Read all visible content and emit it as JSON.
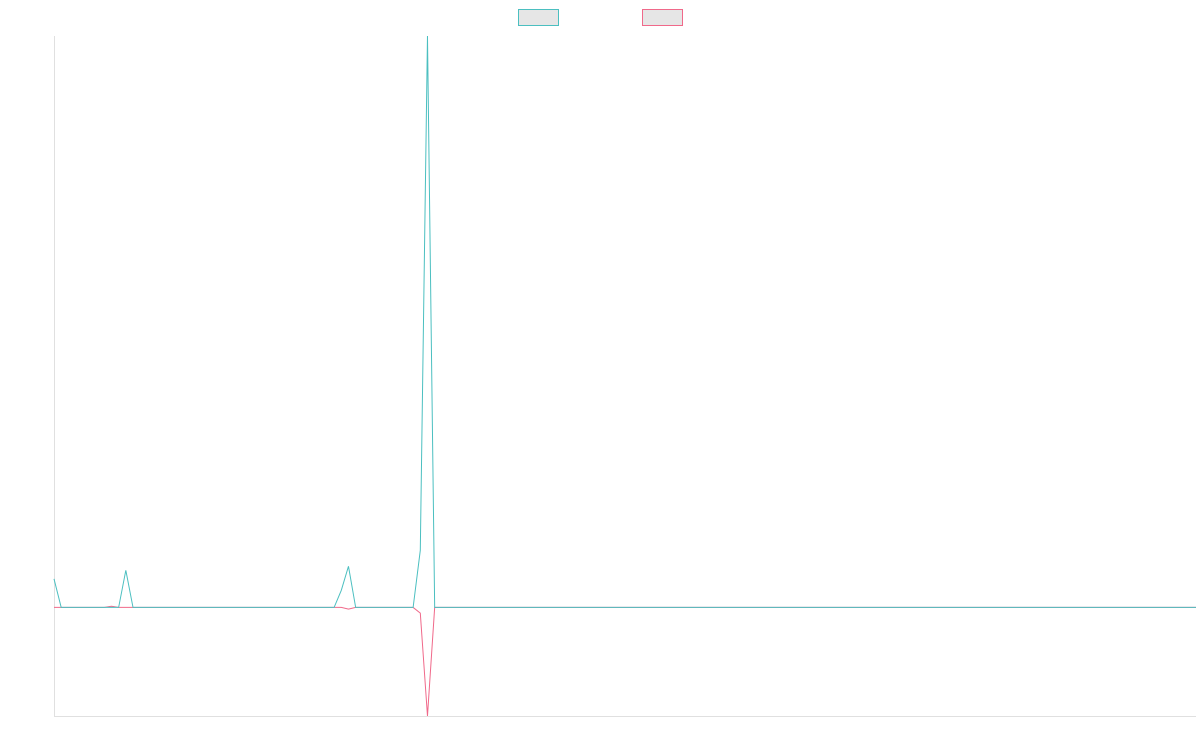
{
  "chart_data": {
    "type": "line",
    "title": "",
    "xlabel": "",
    "ylabel": "",
    "grid": false,
    "legend_position": "top-center",
    "ylim": [
      -0.19,
      1.0
    ],
    "x": [
      0,
      1,
      2,
      3,
      4,
      5,
      6,
      7,
      8,
      9,
      10,
      11,
      12,
      13,
      14,
      15,
      16,
      17,
      18,
      19,
      20,
      21,
      22,
      23,
      24,
      25,
      26,
      27,
      28,
      29,
      30,
      31,
      32,
      33,
      34,
      35,
      36,
      37,
      38,
      39,
      40,
      41,
      42,
      43,
      44,
      45,
      46,
      47,
      48,
      49,
      50,
      51,
      52,
      53,
      54,
      55,
      56,
      57,
      58,
      59,
      60,
      61,
      62,
      63,
      64,
      65,
      66,
      67,
      68,
      69,
      70,
      71,
      72,
      73,
      74,
      75,
      76,
      77,
      78,
      79,
      80,
      81,
      82,
      83,
      84,
      85,
      86,
      87,
      88,
      89,
      90,
      91,
      92,
      93,
      94,
      95,
      96,
      97,
      98,
      99,
      100,
      101,
      102,
      103,
      104,
      105,
      106,
      107,
      108,
      109,
      110,
      111,
      112,
      113,
      114,
      115,
      116,
      117,
      118,
      119,
      120,
      121,
      122,
      123,
      124,
      125,
      126,
      127,
      128,
      129,
      130,
      131,
      132,
      133,
      134,
      135,
      136,
      137,
      138,
      139,
      140,
      141,
      142,
      143,
      144,
      145,
      146,
      147,
      148,
      149,
      150,
      151,
      152,
      153,
      154,
      155,
      156,
      157,
      158,
      159
    ],
    "series": [
      {
        "color": "#4bbfc0",
        "values": [
          0.05,
          0,
          0,
          0,
          0,
          0,
          0,
          0,
          0,
          0,
          0.065,
          0,
          0,
          0,
          0,
          0,
          0,
          0,
          0,
          0,
          0,
          0,
          0,
          0,
          0,
          0,
          0,
          0,
          0,
          0,
          0,
          0,
          0,
          0,
          0,
          0,
          0,
          0,
          0,
          0,
          0.03,
          0.072,
          0,
          0,
          0,
          0,
          0,
          0,
          0,
          0,
          0,
          0.1,
          1.0,
          0,
          0,
          0,
          0,
          0,
          0,
          0,
          0,
          0,
          0,
          0,
          0,
          0,
          0,
          0,
          0,
          0,
          0,
          0,
          0,
          0,
          0,
          0,
          0,
          0,
          0,
          0,
          0,
          0,
          0,
          0,
          0,
          0,
          0,
          0,
          0,
          0,
          0,
          0,
          0,
          0,
          0,
          0,
          0,
          0,
          0,
          0,
          0,
          0,
          0,
          0,
          0,
          0,
          0,
          0,
          0,
          0,
          0,
          0,
          0,
          0,
          0,
          0,
          0,
          0,
          0,
          0,
          0,
          0,
          0,
          0,
          0,
          0,
          0,
          0,
          0,
          0,
          0,
          0,
          0,
          0,
          0,
          0,
          0,
          0,
          0,
          0,
          0,
          0,
          0,
          0,
          0,
          0,
          0,
          0,
          0,
          0,
          0,
          0,
          0,
          0,
          0,
          0,
          0,
          0,
          0,
          0
        ]
      },
      {
        "color": "#f0698a",
        "values": [
          0,
          0,
          0,
          0,
          0,
          0,
          0,
          0,
          0.002,
          0,
          0,
          0,
          0,
          0,
          0,
          0,
          0,
          0,
          0,
          0,
          0,
          0,
          0,
          0,
          0,
          0,
          0,
          0,
          0,
          0,
          0,
          0,
          0,
          0,
          0,
          0,
          0,
          0,
          0,
          0,
          0,
          -0.003,
          0,
          0,
          0,
          0,
          0,
          0,
          0,
          0,
          0,
          -0.01,
          -0.19,
          0,
          0,
          0,
          0,
          0,
          0,
          0,
          0,
          0,
          0,
          0,
          0,
          0,
          0,
          0,
          0,
          0,
          0,
          0,
          0,
          0,
          0,
          0,
          0,
          0,
          0,
          0,
          0,
          0,
          0,
          0,
          0,
          0,
          0,
          0,
          0,
          0,
          0,
          0,
          0,
          0,
          0,
          0,
          0,
          0,
          0,
          0,
          0,
          0,
          0,
          0,
          0,
          0,
          0,
          0,
          0,
          0,
          0,
          0,
          0,
          0,
          0,
          0,
          0,
          0,
          0,
          0,
          0,
          0,
          0,
          0,
          0,
          0,
          0,
          0,
          0,
          0,
          0,
          0,
          0,
          0,
          0,
          0,
          0,
          0,
          0,
          0,
          0,
          0,
          0,
          0,
          0,
          0,
          0,
          0,
          0,
          0,
          0,
          0,
          0,
          0,
          0,
          0,
          0,
          0,
          0,
          0
        ]
      }
    ]
  }
}
